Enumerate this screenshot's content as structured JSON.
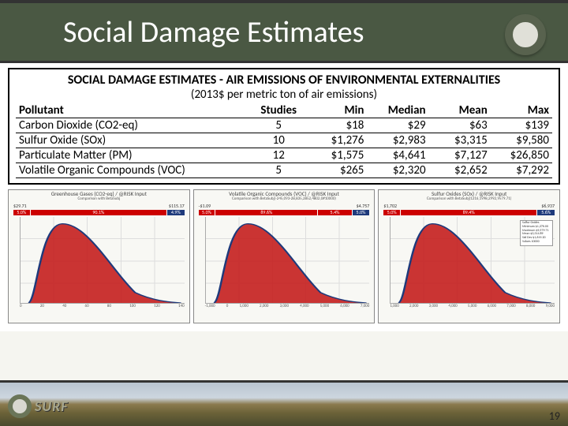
{
  "header": {
    "title": "Social Damage Estimates"
  },
  "box": {
    "title": "SOCIAL DAMAGE ESTIMATES - AIR EMISSIONS OF ENVIRONMENTAL EXTERNALITIES",
    "subtitle": "(2013$ per metric ton of air emissions)"
  },
  "table": {
    "headers": {
      "pollutant": "Pollutant",
      "studies": "Studies",
      "min": "Min",
      "median": "Median",
      "mean": "Mean",
      "max": "Max"
    },
    "rows": [
      {
        "pollutant": "Carbon Dioxide (CO2-eq)",
        "studies": "5",
        "min": "$18",
        "median": "$29",
        "mean": "$63",
        "max": "$139"
      },
      {
        "pollutant": "Sulfur Oxide (SOx)",
        "studies": "10",
        "min": "$1,276",
        "median": "$2,983",
        "mean": "$3,315",
        "max": "$9,580"
      },
      {
        "pollutant": "Particulate Matter (PM)",
        "studies": "12",
        "min": "$1,575",
        "median": "$4,641",
        "mean": "$7,127",
        "max": "$26,850"
      },
      {
        "pollutant": "Volatile Organic Compounds (VOC)",
        "studies": "5",
        "min": "$265",
        "median": "$2,320",
        "mean": "$2,652",
        "max": "$7,292"
      }
    ]
  },
  "charts": [
    {
      "title": "Greenhouse Gases (CO2-eq) / @RISK Input",
      "sub": "Comparison with BetaSubj",
      "top_left": "$29.71",
      "top_right": "$115.17",
      "pct": [
        "5.0%",
        "90.1%",
        "4.9%"
      ],
      "ylabels": [
        "0.014",
        "0.012",
        "0.010",
        "0.008",
        "0.006",
        "0.004",
        "0.002",
        "0.000"
      ],
      "xlabels": [
        "0",
        "20",
        "40",
        "60",
        "80",
        "100",
        "120",
        "140"
      ],
      "curve_fill": "#c41e1e",
      "curve_stroke": "#1e3a7b"
    },
    {
      "title": "Volatile Organic Compounds (VOC) / @RISK Input",
      "sub": "Comparison with BetaSubj(-245,093-28,835,2852,4802,0#10000)",
      "top_left": "-$1.09",
      "top_right": "$4.757",
      "pct": [
        "5.0%",
        "89.6%",
        "5.4%",
        "5.0%"
      ],
      "pct2": [
        "5.0%",
        "90.0%"
      ],
      "ylabels": [
        "",
        "",
        "",
        "",
        "",
        "",
        ""
      ],
      "xlabels": [
        "-1,000",
        "0",
        "1,000",
        "2,000",
        "3,000",
        "4,000",
        "5,000",
        "6,000",
        "7,000"
      ],
      "curve_fill": "#c41e1e",
      "curve_stroke": "#1e3a7b"
    },
    {
      "title": "Sulfur Oxides (SOx) / @RISK Input",
      "sub": "Comparison with BetaSubj(1216,1998,2992,9579.71)",
      "top_left": "$1,702",
      "top_right": "$6,937",
      "pct": [
        "5.0%",
        "89.4%",
        "5.6%"
      ],
      "pct2": [
        "5.0%",
        "90.0%"
      ],
      "ylabels": [
        "",
        "",
        "",
        "",
        "",
        "",
        ""
      ],
      "xlabels": [
        "1,000",
        "2,000",
        "3,000",
        "4,000",
        "5,000",
        "6,000",
        "7,000",
        "8,000",
        "9,000"
      ],
      "curve_fill": "#c41e1e",
      "curve_stroke": "#1e3a7b",
      "legend": {
        "l1": "Sulfur Oxides",
        "l2": "Minimum  $1,276.00",
        "l3": "Maximum  $9,579.71",
        "l4": "Mean     $3,314.89",
        "l5": "Std Dev  $1,619.20",
        "l6": "Values   10000"
      }
    }
  ],
  "footer": {
    "brand": "SURF",
    "page": "19"
  }
}
